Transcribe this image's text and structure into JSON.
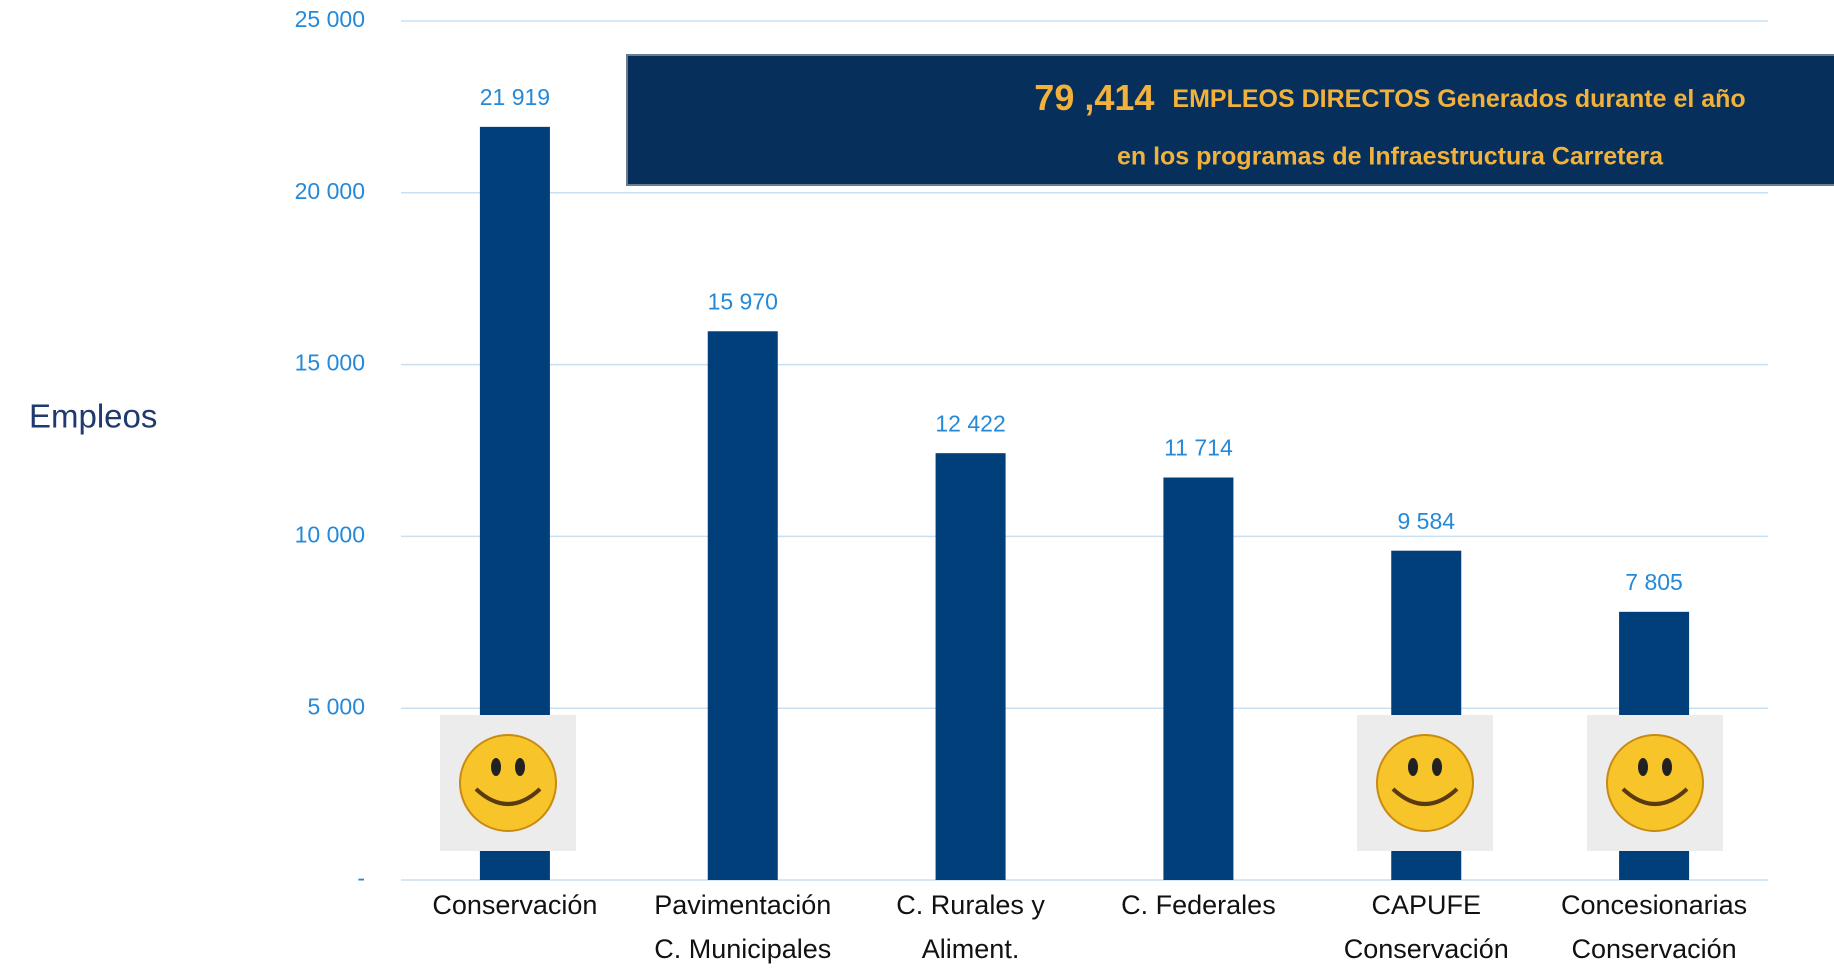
{
  "chart_data": {
    "type": "bar",
    "ylabel": "Empleos",
    "annotation": {
      "number": "79 ,414",
      "line1": "EMPLEOS  DIRECTOS Generados durante el año",
      "line2": "en  los programas de Infraestructura Carretera"
    },
    "categories": [
      [
        "Conservación"
      ],
      [
        "Pavimentación",
        "C.  Municipales"
      ],
      [
        "C. Rurales y",
        "Aliment."
      ],
      [
        "C. Federales"
      ],
      [
        "CAPUFE",
        "Conservación"
      ],
      [
        "Concesionarias",
        "Conservación"
      ]
    ],
    "values": [
      21919,
      15970,
      12422,
      11714,
      9584,
      7805
    ],
    "value_labels": [
      "21 919",
      "15 970",
      "12 422",
      "11 714",
      "9 584",
      "7 805"
    ],
    "color": "#003f7a",
    "ylim": [
      0,
      25000
    ],
    "yticks": [
      {
        "value": 0,
        "label": "-"
      },
      {
        "value": 5000,
        "label": "5 000"
      },
      {
        "value": 10000,
        "label": "10 000"
      },
      {
        "value": 15000,
        "label": "15 000"
      },
      {
        "value": 20000,
        "label": "20 000"
      },
      {
        "value": 25000,
        "label": "25 000"
      }
    ],
    "grid": true
  }
}
